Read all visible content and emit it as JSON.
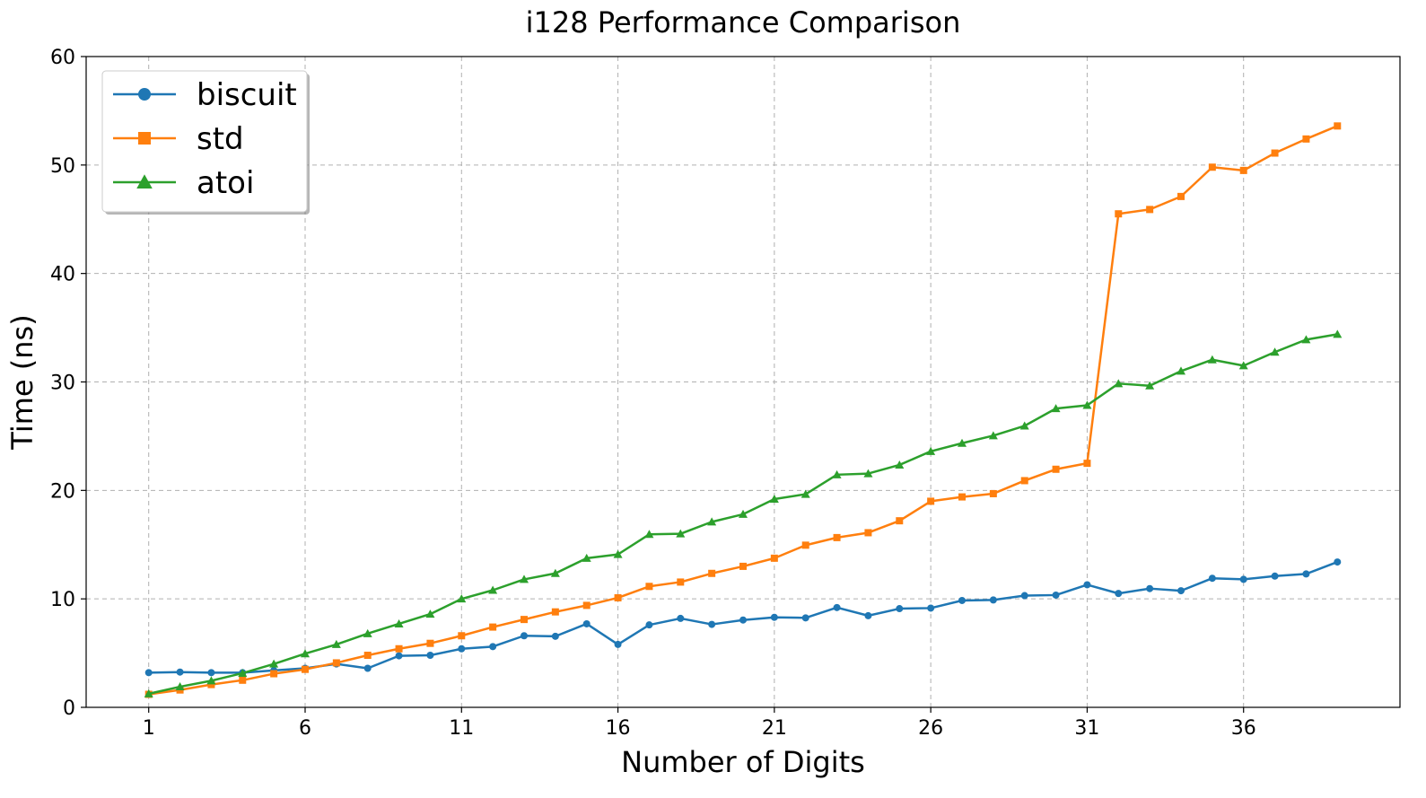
{
  "chart_data": {
    "type": "line",
    "title": "i128 Performance Comparison",
    "xlabel": "Number of Digits",
    "ylabel": "Time (ns)",
    "xlim": [
      -1,
      41
    ],
    "ylim": [
      0,
      60
    ],
    "xticks": [
      1,
      6,
      11,
      16,
      21,
      26,
      31,
      36
    ],
    "yticks": [
      0,
      10,
      20,
      30,
      40,
      50,
      60
    ],
    "grid": true,
    "legend_position": "top-left",
    "x": [
      1,
      2,
      3,
      4,
      5,
      6,
      7,
      8,
      9,
      10,
      11,
      12,
      13,
      14,
      15,
      16,
      17,
      18,
      19,
      20,
      21,
      22,
      23,
      24,
      25,
      26,
      27,
      28,
      29,
      30,
      31,
      32,
      33,
      34,
      35,
      36,
      37,
      38,
      39
    ],
    "series": [
      {
        "name": "biscuit",
        "color": "#1f77b4",
        "marker": "circle",
        "values": [
          3.2,
          3.25,
          3.2,
          3.2,
          3.4,
          3.6,
          4.0,
          3.6,
          4.75,
          4.8,
          5.4,
          5.6,
          6.6,
          6.55,
          7.7,
          5.8,
          7.6,
          8.2,
          7.65,
          8.05,
          8.3,
          8.25,
          9.2,
          8.45,
          9.1,
          9.15,
          9.85,
          9.9,
          10.3,
          10.35,
          11.3,
          10.5,
          10.95,
          10.75,
          11.9,
          11.8,
          12.1,
          12.3,
          13.4
        ]
      },
      {
        "name": "std",
        "color": "#ff7f0e",
        "marker": "square",
        "values": [
          1.2,
          1.6,
          2.1,
          2.5,
          3.1,
          3.5,
          4.1,
          4.8,
          5.4,
          5.9,
          6.6,
          7.4,
          8.1,
          8.8,
          9.4,
          10.1,
          11.15,
          11.55,
          12.35,
          13.0,
          13.75,
          14.95,
          15.65,
          16.1,
          17.2,
          19.0,
          19.4,
          19.7,
          20.9,
          21.95,
          22.5,
          45.5,
          45.9,
          47.1,
          49.8,
          49.5,
          51.1,
          52.4,
          53.6
        ]
      },
      {
        "name": "atoi",
        "color": "#2ca02c",
        "marker": "triangle",
        "values": [
          1.25,
          1.9,
          2.45,
          3.15,
          4.0,
          4.95,
          5.8,
          6.8,
          7.7,
          8.6,
          10.0,
          10.8,
          11.8,
          12.35,
          13.75,
          14.1,
          15.95,
          16.0,
          17.1,
          17.8,
          19.2,
          19.65,
          21.45,
          21.55,
          22.35,
          23.6,
          24.35,
          25.05,
          25.95,
          27.55,
          27.85,
          29.85,
          29.65,
          31.0,
          32.05,
          31.5,
          32.75,
          33.9,
          34.4
        ]
      }
    ]
  }
}
